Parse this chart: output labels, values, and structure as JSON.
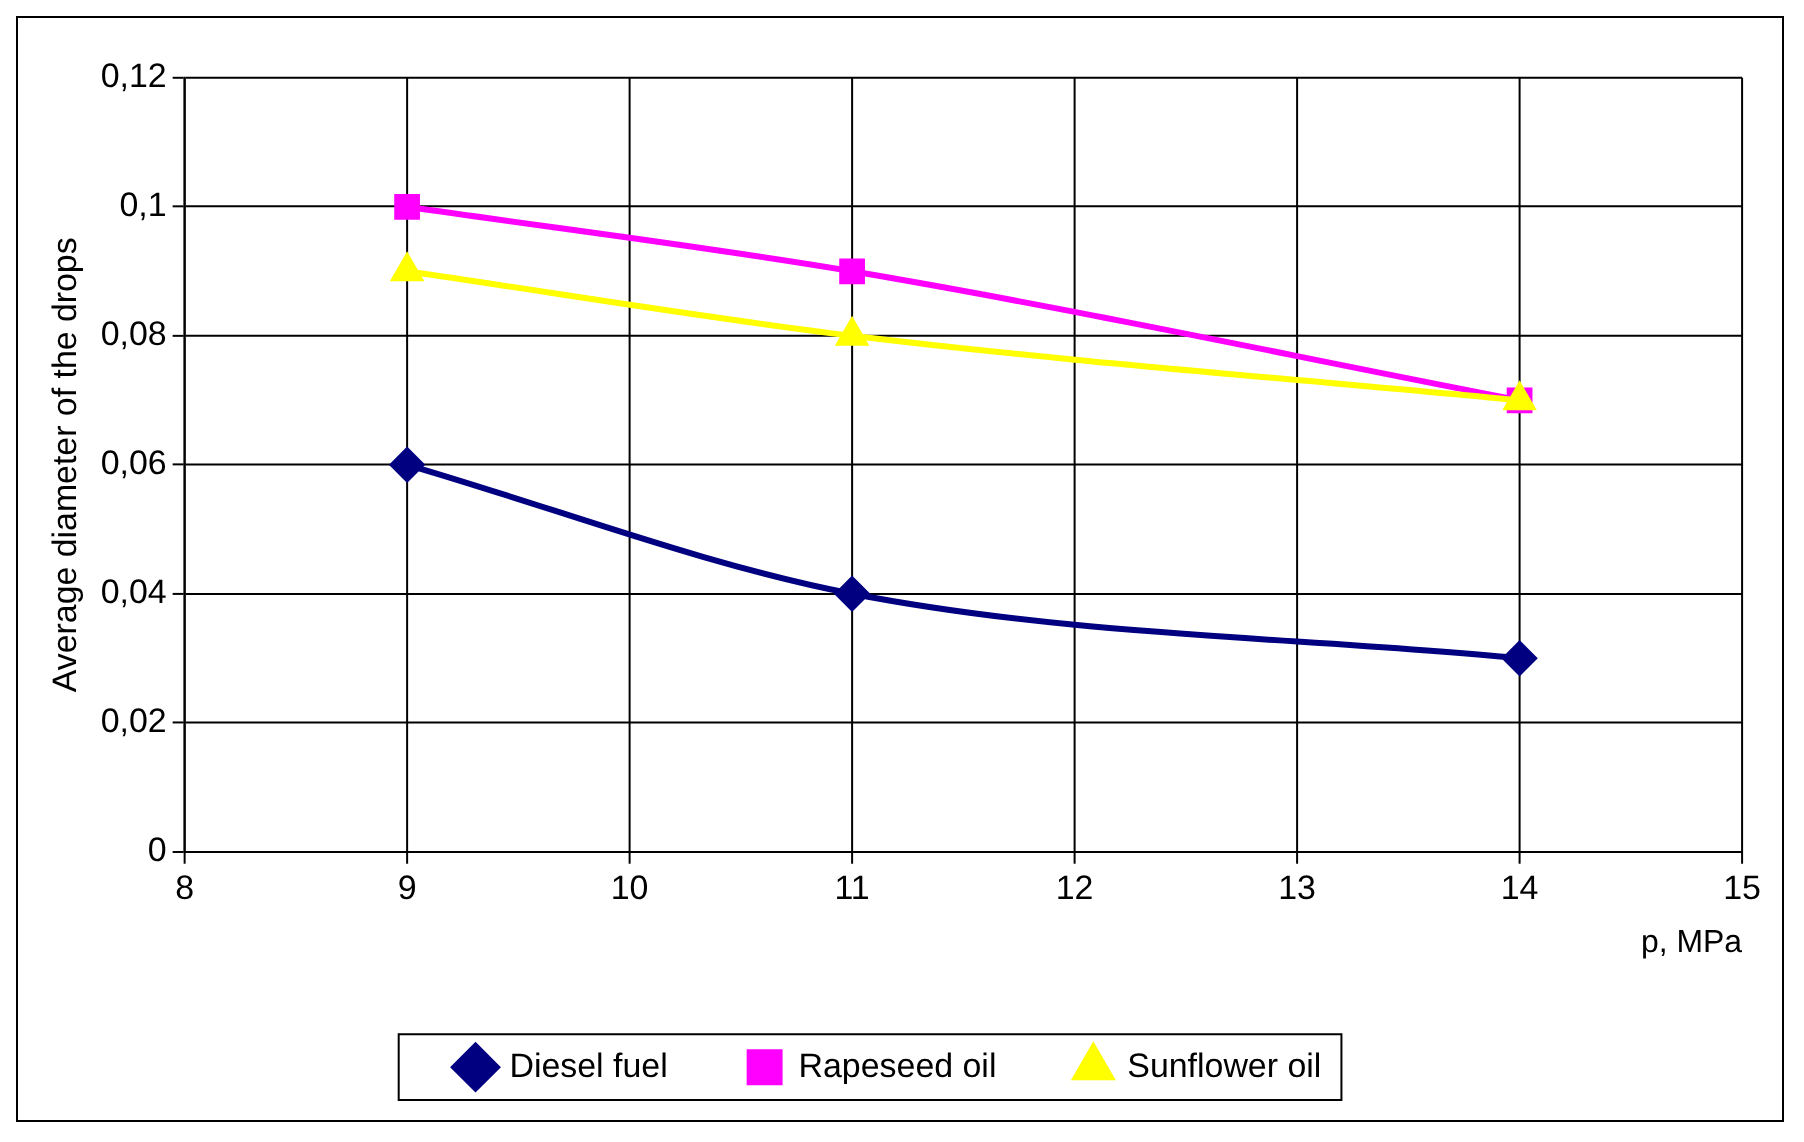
{
  "chart_data": {
    "type": "line",
    "xlabel": "p, MPa",
    "ylabel": "Average diameter of the drops",
    "xlim": [
      8,
      15
    ],
    "xticks": [
      8,
      9,
      10,
      11,
      12,
      13,
      14,
      15
    ],
    "ylim": [
      0,
      0.12
    ],
    "yticks": [
      0,
      {
        "value": 0.02,
        "label": "0,02"
      },
      {
        "value": 0.04,
        "label": "0,04"
      },
      {
        "value": 0.06,
        "label": "0,06"
      },
      {
        "value": 0.08,
        "label": "0,08"
      },
      {
        "value": 0.1,
        "label": "0,1"
      },
      {
        "value": 0.12,
        "label": "0,12"
      }
    ],
    "x": [
      9,
      11,
      14
    ],
    "series": [
      {
        "name": "Diesel fuel",
        "color": "#000080",
        "marker": "diamond",
        "values": [
          0.06,
          0.04,
          0.03
        ]
      },
      {
        "name": "Rapeseed oil",
        "color": "#ff00ff",
        "marker": "square",
        "values": [
          0.1,
          0.09,
          0.07
        ]
      },
      {
        "name": "Sunflower oil",
        "color": "#ffff00",
        "marker": "triangle",
        "values": [
          0.09,
          0.08,
          0.07
        ]
      }
    ],
    "grid": true,
    "legend": "bottom"
  }
}
